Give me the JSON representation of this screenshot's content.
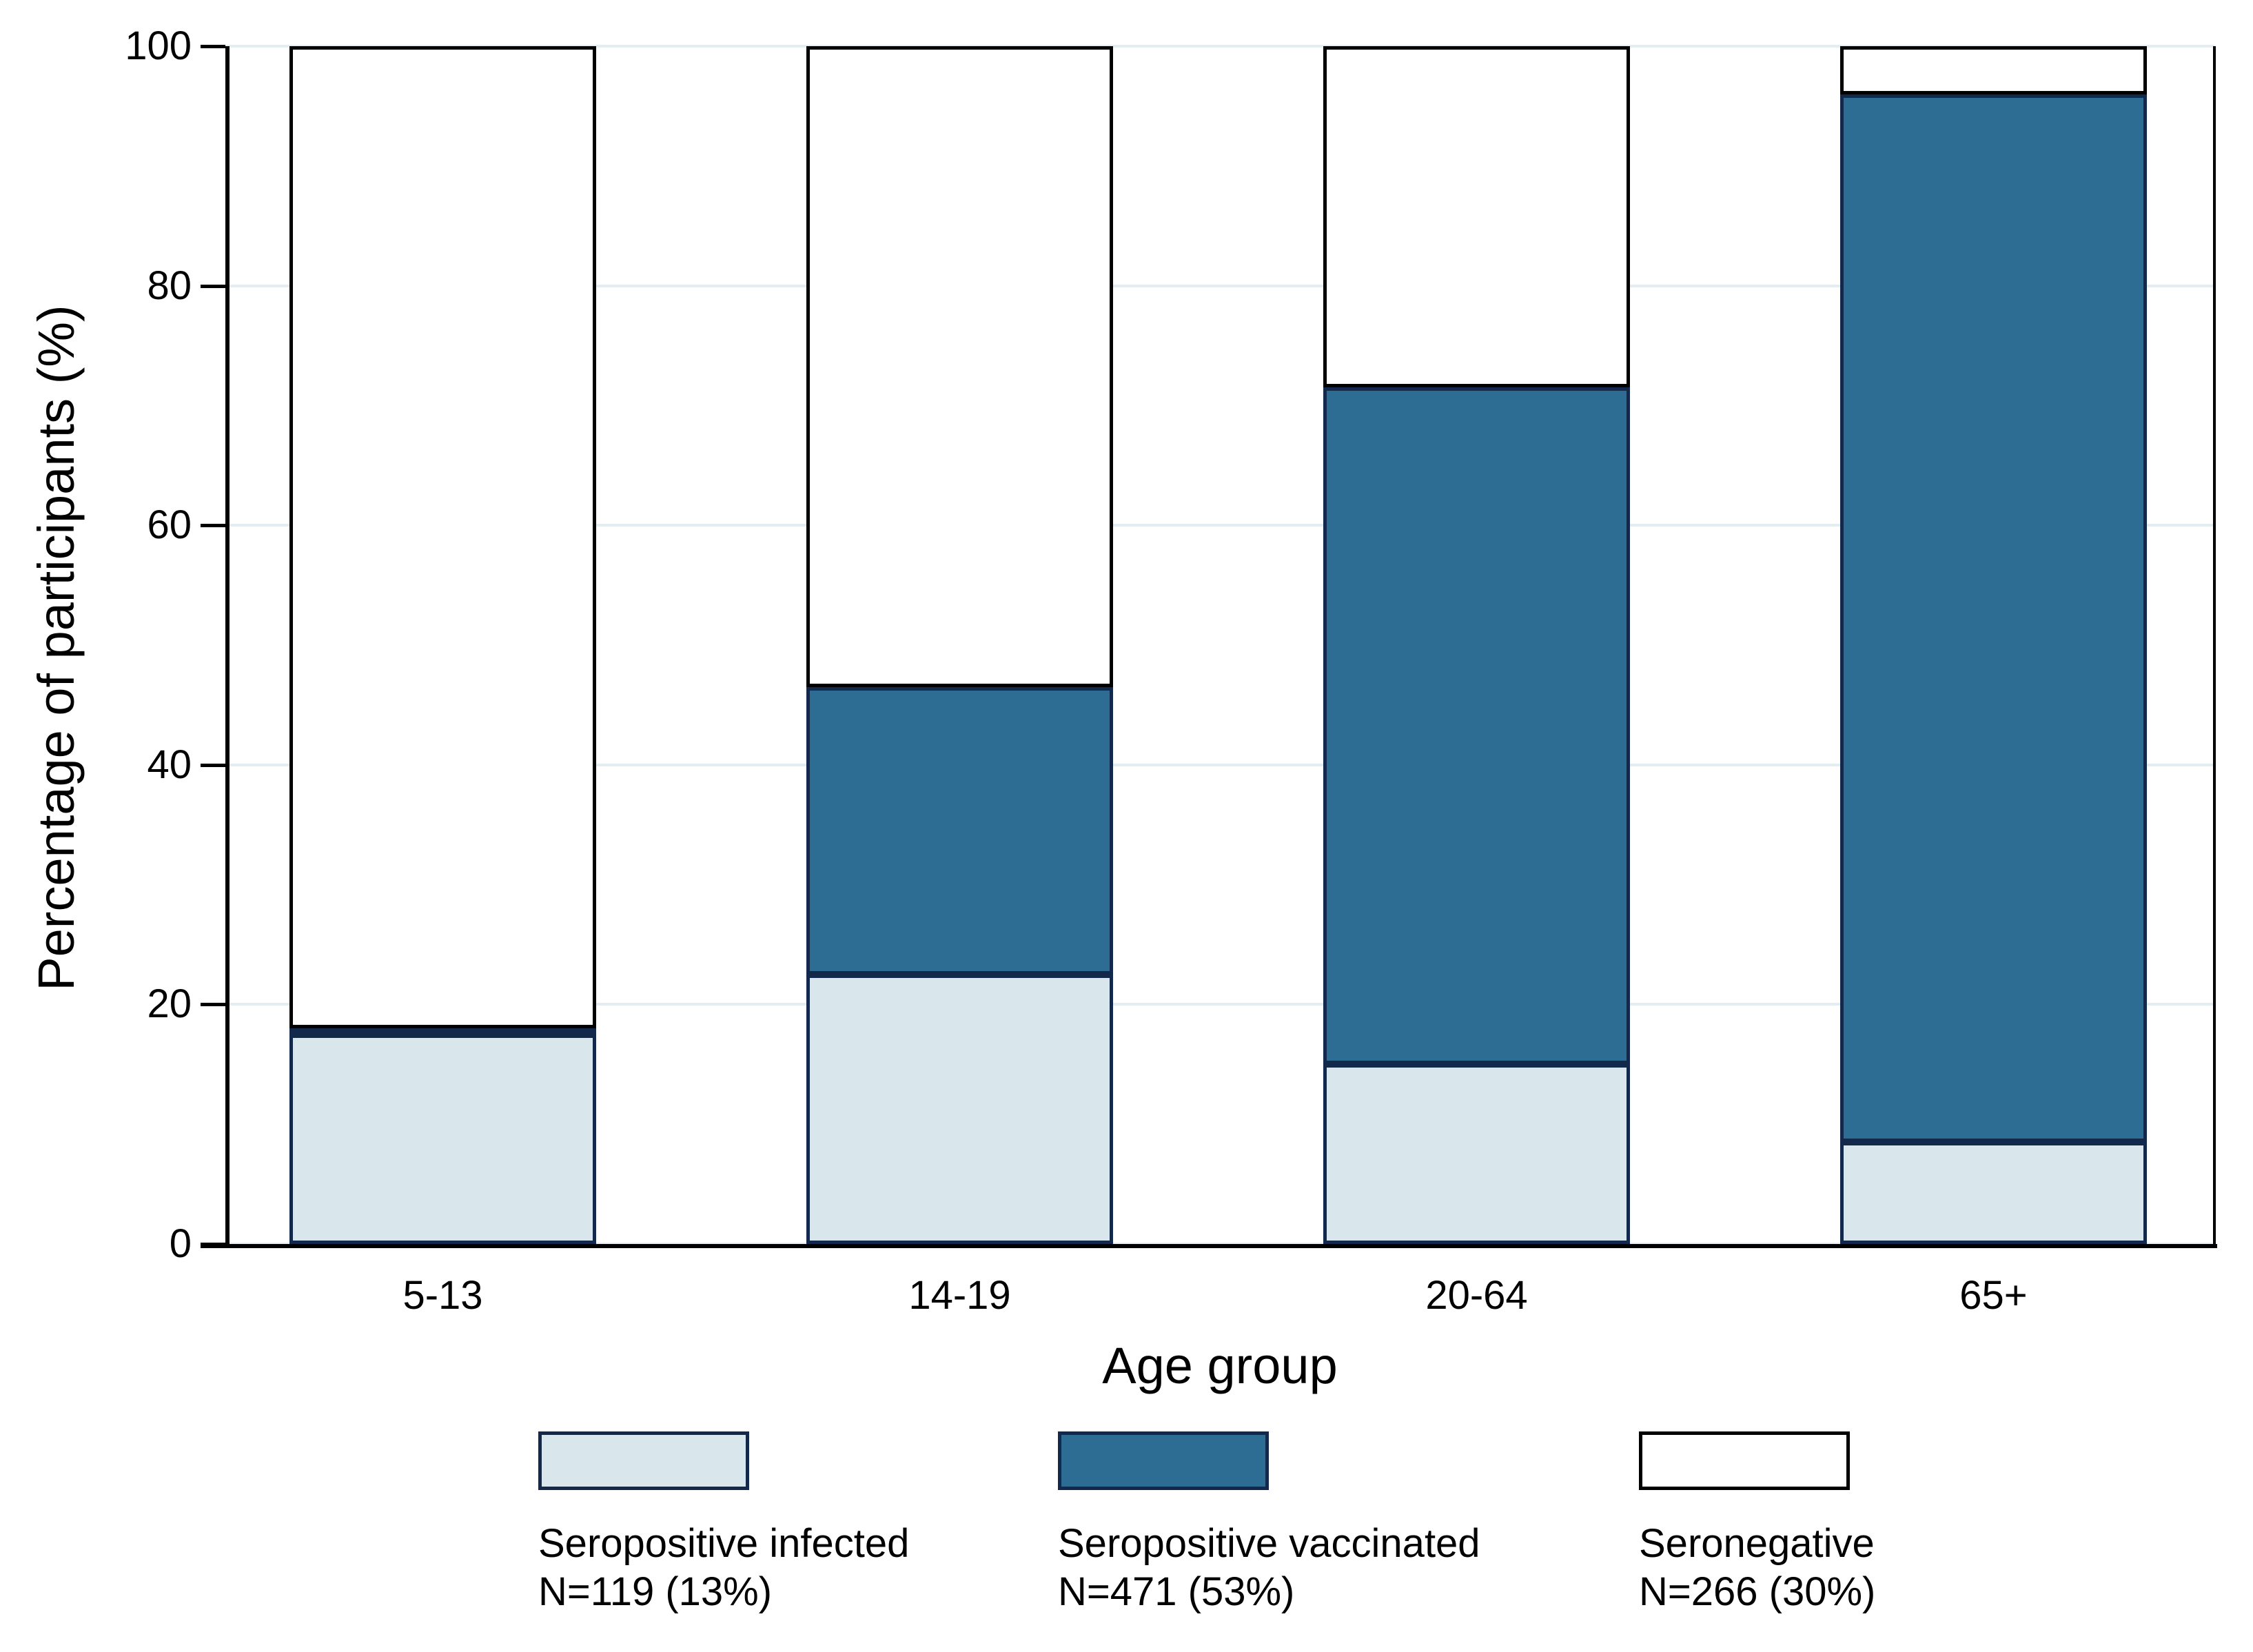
{
  "chart_data": {
    "type": "bar",
    "stacked": true,
    "title": "",
    "xlabel": "Age group",
    "ylabel": "Percentage of participants (%)",
    "ylim": [
      0,
      100
    ],
    "y_ticks": [
      0,
      20,
      40,
      60,
      80,
      100
    ],
    "categories": [
      "5-13",
      "14-19",
      "20-64",
      "65+"
    ],
    "series": [
      {
        "name": "Seropositive infected",
        "n_label": "N=119 (13%)",
        "fill": "#d9e7ed",
        "outline": "#13294b",
        "values": [
          17.5,
          22.5,
          15,
          8.5
        ]
      },
      {
        "name": "Seropositive vaccinated",
        "n_label": "N=471 (53%)",
        "fill": "#2d6c93",
        "outline": "#13294b",
        "values": [
          0.5,
          24,
          56.5,
          87.5
        ]
      },
      {
        "name": "Seronegative",
        "n_label": "N=266 (30%)",
        "fill": "#ffffff",
        "outline": "#000000",
        "values": [
          82,
          53.5,
          28.5,
          4
        ]
      }
    ],
    "grid": true,
    "gridline_color": "#e4eef2",
    "legend_position": "bottom",
    "colors": {
      "axis": "#000000",
      "text": "#000000",
      "background": "#ffffff"
    }
  }
}
